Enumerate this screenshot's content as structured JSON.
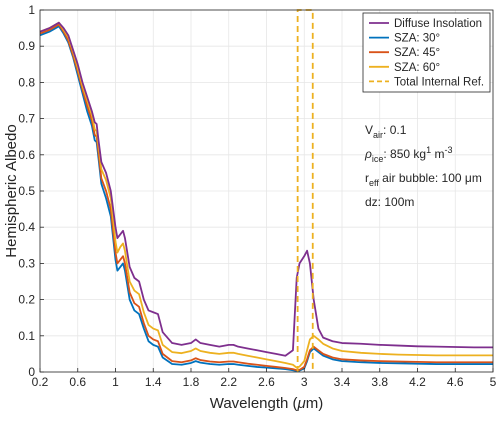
{
  "chart_data": {
    "type": "line",
    "xlabel": "Wavelength (μm)",
    "ylabel": "Hemispheric Albedo",
    "xlim": [
      0.2,
      5
    ],
    "ylim": [
      0,
      1
    ],
    "x_ticks": [
      0.2,
      0.6,
      1,
      1.4,
      1.8,
      2.2,
      2.6,
      3,
      3.4,
      3.8,
      4.2,
      4.6,
      5
    ],
    "x_tick_labels": [
      "0.2",
      "0.6",
      "1",
      "1.4",
      "1.8",
      "2.2",
      "2.6",
      "3",
      "3.4",
      "3.8",
      "4.2",
      "4.6",
      "5"
    ],
    "y_ticks": [
      0,
      0.1,
      0.2,
      0.3,
      0.4,
      0.5,
      0.6,
      0.7,
      0.8,
      0.9,
      1
    ],
    "y_tick_labels": [
      "0",
      "0.1",
      "0.2",
      "0.3",
      "0.4",
      "0.5",
      "0.6",
      "0.7",
      "0.8",
      "0.9",
      "1"
    ],
    "grid": true,
    "legend_position": "top-right",
    "series": [
      {
        "name": "Diffuse Insolation",
        "color": "#7E2F8E",
        "style": "solid",
        "x": [
          0.2,
          0.3,
          0.4,
          0.45,
          0.5,
          0.55,
          0.6,
          0.65,
          0.7,
          0.75,
          0.78,
          0.8,
          0.82,
          0.85,
          0.9,
          0.95,
          1.0,
          1.02,
          1.05,
          1.08,
          1.1,
          1.15,
          1.2,
          1.25,
          1.3,
          1.35,
          1.4,
          1.45,
          1.5,
          1.6,
          1.7,
          1.8,
          1.85,
          1.9,
          2.0,
          2.1,
          2.2,
          2.25,
          2.3,
          2.4,
          2.5,
          2.6,
          2.7,
          2.8,
          2.88,
          2.92,
          2.95,
          3.0,
          3.03,
          3.06,
          3.1,
          3.15,
          3.2,
          3.3,
          3.4,
          3.6,
          3.8,
          4.0,
          4.2,
          4.4,
          4.6,
          4.8,
          5.0
        ],
        "y": [
          0.94,
          0.95,
          0.965,
          0.95,
          0.93,
          0.89,
          0.85,
          0.8,
          0.76,
          0.72,
          0.69,
          0.685,
          0.64,
          0.58,
          0.55,
          0.5,
          0.4,
          0.37,
          0.38,
          0.39,
          0.37,
          0.29,
          0.26,
          0.25,
          0.2,
          0.17,
          0.165,
          0.16,
          0.11,
          0.08,
          0.075,
          0.08,
          0.09,
          0.08,
          0.075,
          0.07,
          0.075,
          0.075,
          0.07,
          0.065,
          0.06,
          0.055,
          0.05,
          0.045,
          0.06,
          0.26,
          0.3,
          0.32,
          0.335,
          0.3,
          0.2,
          0.12,
          0.095,
          0.085,
          0.08,
          0.078,
          0.075,
          0.073,
          0.071,
          0.07,
          0.069,
          0.068,
          0.068
        ]
      },
      {
        "name": "SZA: 30°",
        "color": "#0072BD",
        "style": "solid",
        "x": [
          0.2,
          0.3,
          0.4,
          0.45,
          0.5,
          0.55,
          0.6,
          0.65,
          0.7,
          0.75,
          0.78,
          0.8,
          0.82,
          0.85,
          0.9,
          0.95,
          1.0,
          1.02,
          1.05,
          1.08,
          1.1,
          1.15,
          1.2,
          1.25,
          1.3,
          1.35,
          1.4,
          1.45,
          1.5,
          1.6,
          1.7,
          1.8,
          1.85,
          1.9,
          2.0,
          2.1,
          2.2,
          2.25,
          2.3,
          2.4,
          2.5,
          2.6,
          2.7,
          2.8,
          2.88,
          2.92,
          2.95,
          3.0,
          3.03,
          3.06,
          3.1,
          3.15,
          3.2,
          3.3,
          3.4,
          3.6,
          3.8,
          4.0,
          4.2,
          4.4,
          4.6,
          4.8,
          5.0
        ],
        "y": [
          0.93,
          0.94,
          0.955,
          0.935,
          0.91,
          0.87,
          0.82,
          0.77,
          0.72,
          0.68,
          0.64,
          0.635,
          0.59,
          0.52,
          0.48,
          0.43,
          0.31,
          0.28,
          0.29,
          0.3,
          0.28,
          0.2,
          0.17,
          0.16,
          0.12,
          0.085,
          0.075,
          0.07,
          0.04,
          0.022,
          0.02,
          0.025,
          0.03,
          0.026,
          0.022,
          0.02,
          0.022,
          0.022,
          0.02,
          0.017,
          0.014,
          0.012,
          0.01,
          0.008,
          0.005,
          0.003,
          0.004,
          0.01,
          0.03,
          0.055,
          0.065,
          0.055,
          0.045,
          0.035,
          0.03,
          0.027,
          0.025,
          0.024,
          0.023,
          0.022,
          0.022,
          0.022,
          0.022
        ]
      },
      {
        "name": "SZA: 45°",
        "color": "#D95319",
        "style": "solid",
        "x": [
          0.2,
          0.3,
          0.4,
          0.45,
          0.5,
          0.55,
          0.6,
          0.65,
          0.7,
          0.75,
          0.78,
          0.8,
          0.82,
          0.85,
          0.9,
          0.95,
          1.0,
          1.02,
          1.05,
          1.08,
          1.1,
          1.15,
          1.2,
          1.25,
          1.3,
          1.35,
          1.4,
          1.45,
          1.5,
          1.6,
          1.7,
          1.8,
          1.85,
          1.9,
          2.0,
          2.1,
          2.2,
          2.25,
          2.3,
          2.4,
          2.5,
          2.6,
          2.7,
          2.8,
          2.88,
          2.92,
          2.95,
          3.0,
          3.03,
          3.06,
          3.1,
          3.15,
          3.2,
          3.3,
          3.4,
          3.6,
          3.8,
          4.0,
          4.2,
          4.4,
          4.6,
          4.8,
          5.0
        ],
        "y": [
          0.935,
          0.945,
          0.96,
          0.94,
          0.915,
          0.875,
          0.83,
          0.78,
          0.735,
          0.695,
          0.655,
          0.65,
          0.605,
          0.535,
          0.5,
          0.45,
          0.33,
          0.3,
          0.31,
          0.32,
          0.3,
          0.22,
          0.19,
          0.18,
          0.135,
          0.1,
          0.09,
          0.085,
          0.05,
          0.03,
          0.027,
          0.032,
          0.038,
          0.033,
          0.029,
          0.027,
          0.029,
          0.029,
          0.027,
          0.023,
          0.02,
          0.017,
          0.014,
          0.011,
          0.008,
          0.005,
          0.006,
          0.014,
          0.035,
          0.06,
          0.07,
          0.06,
          0.05,
          0.04,
          0.035,
          0.032,
          0.03,
          0.029,
          0.028,
          0.027,
          0.027,
          0.027,
          0.027
        ]
      },
      {
        "name": "SZA: 60°",
        "color": "#EDB120",
        "style": "solid",
        "x": [
          0.2,
          0.3,
          0.4,
          0.45,
          0.5,
          0.55,
          0.6,
          0.65,
          0.7,
          0.75,
          0.78,
          0.8,
          0.82,
          0.85,
          0.9,
          0.95,
          1.0,
          1.02,
          1.05,
          1.08,
          1.1,
          1.15,
          1.2,
          1.25,
          1.3,
          1.35,
          1.4,
          1.45,
          1.5,
          1.6,
          1.7,
          1.8,
          1.85,
          1.9,
          2.0,
          2.1,
          2.2,
          2.25,
          2.3,
          2.4,
          2.5,
          2.6,
          2.7,
          2.8,
          2.88,
          2.92,
          2.95,
          3.0,
          3.03,
          3.06,
          3.1,
          3.15,
          3.2,
          3.3,
          3.4,
          3.6,
          3.8,
          4.0,
          4.2,
          4.4,
          4.6,
          4.8,
          5.0
        ],
        "y": [
          0.94,
          0.95,
          0.965,
          0.945,
          0.925,
          0.885,
          0.84,
          0.79,
          0.75,
          0.71,
          0.67,
          0.665,
          0.625,
          0.56,
          0.53,
          0.48,
          0.36,
          0.33,
          0.345,
          0.355,
          0.335,
          0.25,
          0.225,
          0.215,
          0.165,
          0.13,
          0.12,
          0.115,
          0.075,
          0.055,
          0.052,
          0.058,
          0.065,
          0.058,
          0.053,
          0.05,
          0.053,
          0.053,
          0.05,
          0.045,
          0.04,
          0.035,
          0.03,
          0.025,
          0.02,
          0.012,
          0.015,
          0.03,
          0.06,
          0.09,
          0.1,
          0.09,
          0.078,
          0.065,
          0.058,
          0.053,
          0.05,
          0.048,
          0.047,
          0.046,
          0.046,
          0.046,
          0.046
        ]
      }
    ],
    "reference_lines": [
      {
        "name": "Total Internal Ref.",
        "color": "#EDB120",
        "style": "dashed",
        "x_left": 2.93,
        "x_right": 3.09
      }
    ],
    "annotations": [
      {
        "main": "V",
        "sub": "air",
        "sup": "",
        "rest": ": 0.1"
      },
      {
        "main": "ρ",
        "sub": "ice",
        "sup": "",
        "rest": ": 850 kg",
        "sup2": "1",
        "rest2": " m",
        "sup3": "-3"
      },
      {
        "main": "r",
        "sub": "eff",
        "sup": "",
        "rest": " air bubble: 100 μm"
      },
      {
        "main": "dz: 100m",
        "sub": "",
        "sup": "",
        "rest": ""
      }
    ]
  }
}
